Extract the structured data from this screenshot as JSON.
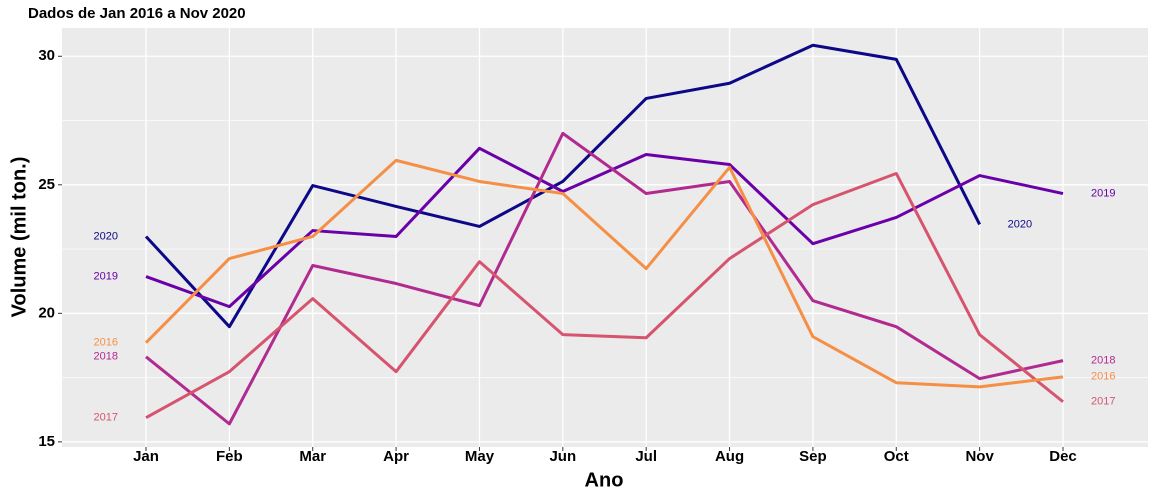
{
  "chart_data": {
    "type": "line",
    "title": "Dados de Jan 2016 a Nov 2020",
    "x_label": "Ano",
    "y_label": "Volume (mil ton.)",
    "categories": [
      "Jan",
      "Feb",
      "Mar",
      "Apr",
      "May",
      "Jun",
      "Jul",
      "Aug",
      "Sep",
      "Oct",
      "Nov",
      "Dec"
    ],
    "ylim": [
      14.8,
      31.1
    ],
    "yticks": [
      15,
      20,
      25,
      30
    ],
    "grid": true,
    "series": [
      {
        "name": "2020",
        "color": "#0d0887",
        "values": [
          22.99,
          19.48,
          24.97,
          24.16,
          23.38,
          25.13,
          28.36,
          28.95,
          30.43,
          29.88,
          23.46,
          null
        ]
      },
      {
        "name": "2019",
        "color": "#6a00a8",
        "values": [
          21.43,
          20.26,
          23.22,
          22.99,
          26.42,
          24.74,
          26.18,
          25.79,
          22.71,
          23.73,
          25.36,
          24.66
        ]
      },
      {
        "name": "2018",
        "color": "#b12a90",
        "values": [
          18.31,
          15.7,
          21.86,
          21.16,
          20.3,
          27.0,
          24.66,
          25.13,
          20.49,
          19.48,
          17.46,
          18.16
        ]
      },
      {
        "name": "2017",
        "color": "#d6546e",
        "values": [
          15.94,
          17.73,
          20.57,
          17.73,
          22.01,
          19.17,
          19.05,
          22.13,
          24.23,
          25.44,
          19.17,
          16.56
        ]
      },
      {
        "name": "2016",
        "color": "#f68f46",
        "values": [
          18.86,
          22.13,
          22.99,
          25.95,
          25.13,
          24.66,
          21.74,
          25.68,
          19.09,
          17.3,
          17.14,
          17.53
        ]
      }
    ]
  }
}
